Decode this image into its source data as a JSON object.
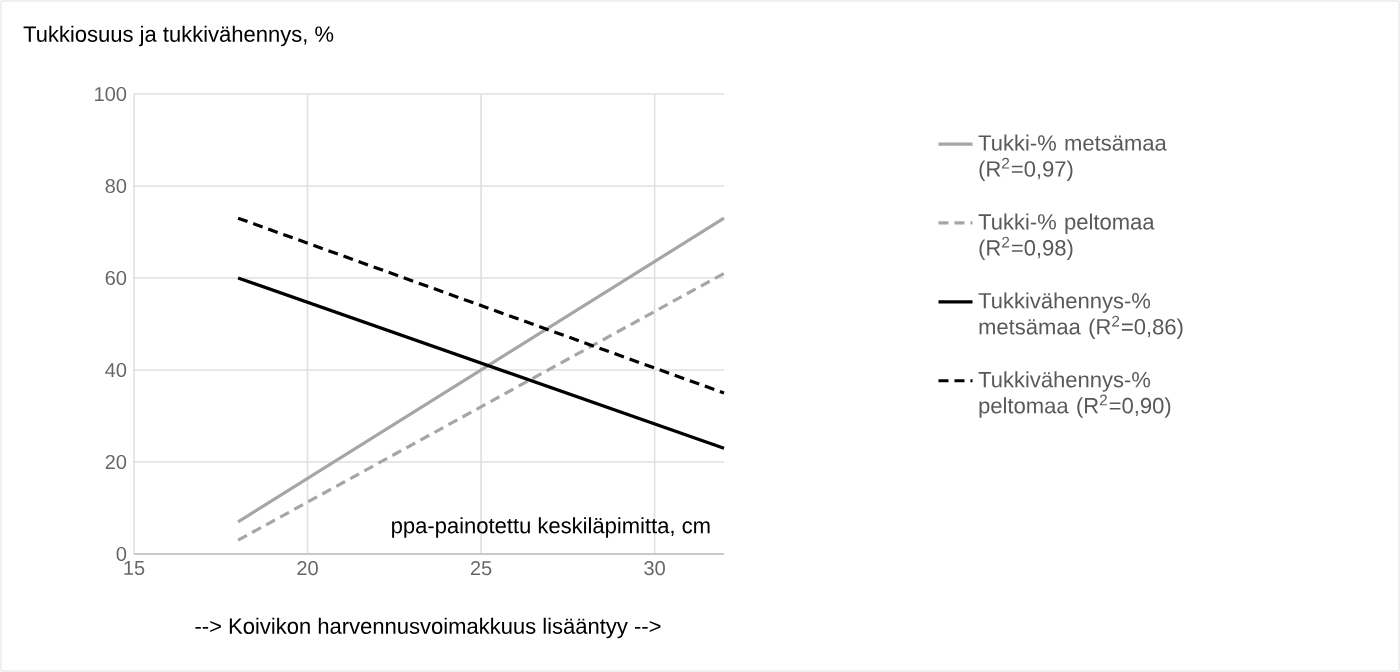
{
  "chart_data": {
    "type": "line",
    "ylabel": "Tukkiosuus ja tukkivähennys, %",
    "xlabel": "ppa-painotettu keskiläpimitta, cm",
    "annotations": [
      "--> Koivikon harvennusvoimakkuus lisääntyy -->"
    ],
    "xlim": [
      15,
      32
    ],
    "xticks": [
      15,
      20,
      25,
      30
    ],
    "ylim": [
      0,
      100
    ],
    "yticks": [
      0,
      20,
      40,
      60,
      80,
      100
    ],
    "grid": true,
    "legend": "right",
    "x": [
      18,
      32
    ],
    "series": [
      {
        "name": "Tukki-% metsämaa (R$^{2}$=0,97)",
        "color": "#a6a6a6",
        "line_style": "solid",
        "values": [
          7,
          73
        ]
      },
      {
        "name": "Tukki-% peltomaa (R$^{2}$=0,98)",
        "color": "#a6a6a6",
        "line_style": "dashed",
        "values": [
          3,
          61
        ]
      },
      {
        "name": "Tukkivähennys-% metsämaa (R$^{2}$=0,86)",
        "color": "#000000",
        "line_style": "solid",
        "values": [
          60,
          23
        ]
      },
      {
        "name": "Tukkivähennys-% peltomaa (R$^{2}$=0,90)",
        "color": "#000000",
        "line_style": "dashed",
        "values": [
          73,
          35
        ]
      }
    ]
  }
}
